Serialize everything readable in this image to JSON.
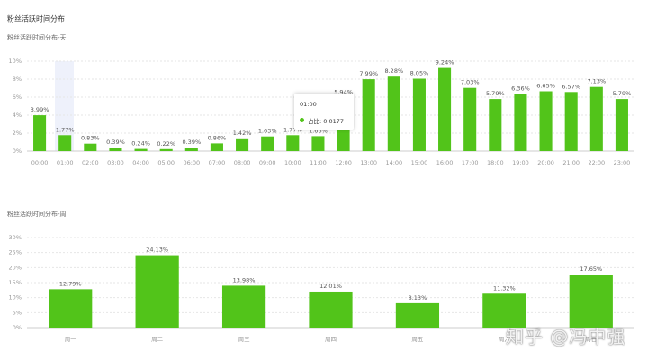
{
  "header": {
    "title": "粉丝活跃时间分布"
  },
  "tooltip": {
    "title": "01:00",
    "label": "占比: 0.0177"
  },
  "watermark": "知乎 @冯中强",
  "chart_data": [
    {
      "type": "bar",
      "title": "粉丝活跃时间分布-天",
      "color": "#52c41a",
      "grid": true,
      "categories": [
        "00:00",
        "01:00",
        "02:00",
        "03:00",
        "04:00",
        "05:00",
        "06:00",
        "07:00",
        "08:00",
        "09:00",
        "10:00",
        "11:00",
        "12:00",
        "13:00",
        "14:00",
        "15:00",
        "16:00",
        "17:00",
        "18:00",
        "19:00",
        "20:00",
        "21:00",
        "22:00",
        "23:00"
      ],
      "values": [
        3.99,
        1.77,
        0.83,
        0.39,
        0.24,
        0.22,
        0.39,
        0.86,
        1.42,
        1.63,
        1.77,
        1.66,
        5.94,
        7.99,
        8.28,
        8.05,
        9.24,
        7.03,
        5.79,
        6.36,
        6.65,
        6.57,
        7.13,
        5.79
      ],
      "value_labels": [
        "3.99%",
        "1.77%",
        "0.83%",
        "0.39%",
        "0.24%",
        "0.22%",
        "0.39%",
        "0.86%",
        "1.42%",
        "1.63%",
        "1.77%",
        "1.66%",
        "5.94%",
        "7.99%",
        "8.28%",
        "8.05%",
        "9.24%",
        "7.03%",
        "5.79%",
        "6.36%",
        "6.65%",
        "6.57%",
        "7.13%",
        "5.79%"
      ],
      "ylim": [
        0,
        10
      ],
      "yticks": [
        {
          "value": 0,
          "label": "0%"
        },
        {
          "value": 2,
          "label": "2%"
        },
        {
          "value": 4,
          "label": "4%"
        },
        {
          "value": 6,
          "label": "6%"
        },
        {
          "value": 8,
          "label": "8%"
        },
        {
          "value": 10,
          "label": "10%"
        }
      ]
    },
    {
      "type": "bar",
      "title": "粉丝活跃时间分布-周",
      "color": "#52c41a",
      "grid": true,
      "categories": [
        "周一",
        "周二",
        "周三",
        "周四",
        "周五",
        "周六",
        "周日"
      ],
      "values": [
        12.79,
        24.13,
        13.98,
        12.01,
        8.13,
        11.32,
        17.65
      ],
      "value_labels": [
        "12.79%",
        "24.13%",
        "13.98%",
        "12.01%",
        "8.13%",
        "11.32%",
        "17.65%"
      ],
      "ylim": [
        0,
        30
      ],
      "yticks": [
        {
          "value": 0,
          "label": "0%"
        },
        {
          "value": 5,
          "label": "5%"
        },
        {
          "value": 10,
          "label": "10%"
        },
        {
          "value": 15,
          "label": "15%"
        },
        {
          "value": 20,
          "label": "20%"
        },
        {
          "value": 25,
          "label": "25%"
        },
        {
          "value": 30,
          "label": "30%"
        }
      ]
    }
  ]
}
